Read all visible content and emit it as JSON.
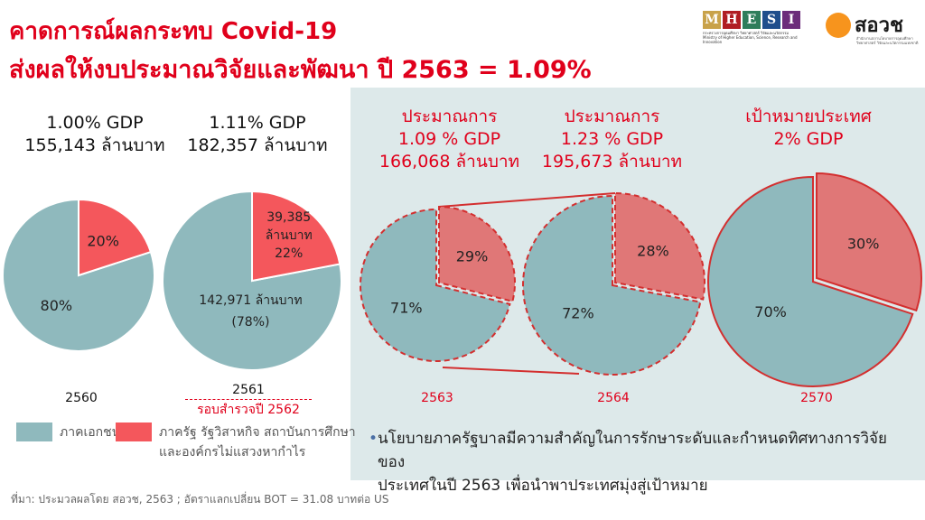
{
  "title_line1": "คาดการณ์ผลกระทบ Covid-19",
  "title_line2": "ส่งผลให้งบประมาณวิจัยและพัฒนา ปี 2563 = 1.09%",
  "logos": {
    "mhesi_letters": [
      "M",
      "H",
      "E",
      "S",
      "I"
    ],
    "mhesi_colors": [
      "#c8a24a",
      "#b01e23",
      "#2e7d5b",
      "#1f4e8c",
      "#6c2c7a"
    ],
    "mhesi_subtitle": "กระทรวงการอุดมศึกษา วิทยาศาสตร์ วิจัยและนวัตกรรม Ministry of Higher Education, Science, Research and Innovation",
    "ora_name": "สอวช",
    "ora_subtitle": "สำนักงานสภานโยบายการอุดมศึกษา วิทยาศาสตร์ วิจัยและนวัตกรรมแห่งชาติ"
  },
  "colors": {
    "private": "#8fb9bd",
    "public": "#f4575c",
    "public_projected": "#e07777",
    "red_text": "#e0001b",
    "panel_bg": "#dde9ea"
  },
  "charts": {
    "c2560": {
      "head1": "1.00% GDP",
      "head2": "155,143 ล้านบาท",
      "year": "2560",
      "private_label": "80%",
      "public_label": "20%"
    },
    "c2561": {
      "head1": "1.11% GDP",
      "head2": "182,357 ล้านบาท",
      "year": "2561",
      "year_note": "รอบสำรวจปี 2562",
      "private_label1": "142,971 ล้านบาท",
      "private_label2": "(78%)",
      "public_label1": "39,385",
      "public_label2": "ล้านบาท",
      "public_label3": "22%"
    },
    "c2563": {
      "head1": "ประมาณการ",
      "head2": "1.09 % GDP",
      "head3": "166,068 ล้านบาท",
      "year": "2563",
      "private_label": "71%",
      "public_label": "29%"
    },
    "c2564": {
      "head1": "ประมาณการ",
      "head2": "1.23 % GDP",
      "head3": "195,673 ล้านบาท",
      "year": "2564",
      "private_label": "72%",
      "public_label": "28%"
    },
    "c2570": {
      "head1": "เป้าหมายประเทศ",
      "head2": "2% GDP",
      "year": "2570",
      "private_label": "70%",
      "public_label": "30%"
    }
  },
  "chart_data": {
    "type": "pie",
    "title": "คาดการณ์ผลกระทบ Covid-19 ส่งผลให้งบประมาณวิจัยและพัฒนา ปี 2563 = 1.09%",
    "categories": [
      "ภาคเอกชน",
      "ภาครัฐ รัฐวิสาหกิจ สถาบันการศึกษา และองค์กรไม่แสวงหากำไร"
    ],
    "series": [
      {
        "name": "2560",
        "values": [
          80,
          20
        ]
      },
      {
        "name": "2561",
        "values": [
          78,
          22
        ]
      },
      {
        "name": "2563",
        "values": [
          71,
          29
        ]
      },
      {
        "name": "2564",
        "values": [
          72,
          28
        ]
      },
      {
        "name": "2570",
        "values": [
          70,
          30
        ]
      }
    ],
    "legend_position": "bottom-left"
  },
  "legend": {
    "private": "ภาคเอกชน",
    "public_line1": "ภาครัฐ รัฐวิสาหกิจ สถาบันการศึกษา",
    "public_line2": "และองค์กรไม่แสวงหากำไร"
  },
  "bullet_line1": "นโยบายภาครัฐบาลมีความสำคัญในการรักษาระดับและกำหนดทิศทางการวิจัยของ",
  "bullet_line2": "ประเทศในปี 2563 เพื่อนำพาประเทศมุ่งสู่เป้าหมาย",
  "footnote": "ที่มา: ประมวลผลโดย สอวช, 2563 ; อัตราแลกเปลี่ยน BOT = 31.08 บาทต่อ US"
}
